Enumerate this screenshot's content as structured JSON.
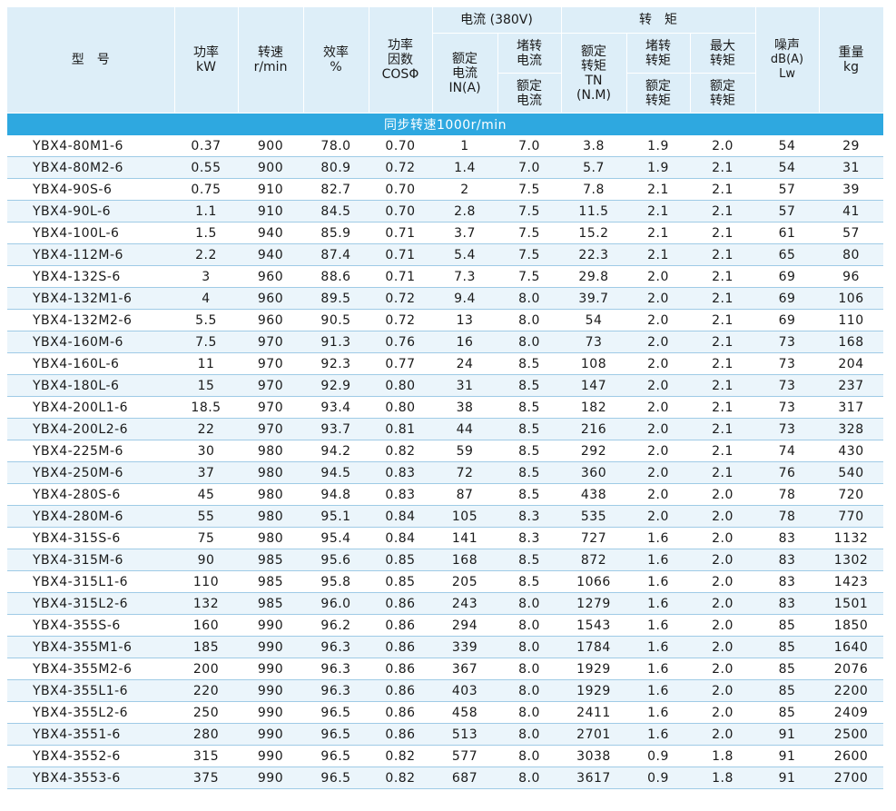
{
  "header": {
    "model": "型　号",
    "power": [
      "功率",
      "kW"
    ],
    "speed": [
      "转速",
      "r/min"
    ],
    "efficiency": [
      "效率",
      "%"
    ],
    "power_factor": [
      "功率",
      "因数",
      "COSΦ"
    ],
    "current_group": "电流 (380V)",
    "rated_current": [
      "额定",
      "电流",
      "IN(A)"
    ],
    "locked_current_top": [
      "堵转",
      "电流"
    ],
    "locked_current_bottom": [
      "额定",
      "电流"
    ],
    "torque_group": "转　矩",
    "rated_torque": [
      "额定",
      "转矩",
      "TN",
      "(N.M)"
    ],
    "locked_torque_top": [
      "堵转",
      "转矩"
    ],
    "locked_torque_bottom": [
      "额定",
      "转矩"
    ],
    "max_torque_top": [
      "最大",
      "转矩"
    ],
    "max_torque_bottom": [
      "额定",
      "转矩"
    ],
    "noise": [
      "噪声",
      "dB(A)",
      "Lw"
    ],
    "weight": [
      "重量",
      "kg"
    ]
  },
  "section_title": "同步转速1000r/min",
  "rows": [
    [
      "YBX4-80M1-6",
      "0.37",
      "900",
      "78.0",
      "0.70",
      "1",
      "7.0",
      "3.8",
      "1.9",
      "2.0",
      "54",
      "29"
    ],
    [
      "YBX4-80M2-6",
      "0.55",
      "900",
      "80.9",
      "0.72",
      "1.4",
      "7.0",
      "5.7",
      "1.9",
      "2.1",
      "54",
      "31"
    ],
    [
      "YBX4-90S-6",
      "0.75",
      "910",
      "82.7",
      "0.70",
      "2",
      "7.5",
      "7.8",
      "2.1",
      "2.1",
      "57",
      "39"
    ],
    [
      "YBX4-90L-6",
      "1.1",
      "910",
      "84.5",
      "0.70",
      "2.8",
      "7.5",
      "11.5",
      "2.1",
      "2.1",
      "57",
      "41"
    ],
    [
      "YBX4-100L-6",
      "1.5",
      "940",
      "85.9",
      "0.71",
      "3.7",
      "7.5",
      "15.2",
      "2.1",
      "2.1",
      "61",
      "57"
    ],
    [
      "YBX4-112M-6",
      "2.2",
      "940",
      "87.4",
      "0.71",
      "5.4",
      "7.5",
      "22.3",
      "2.1",
      "2.1",
      "65",
      "80"
    ],
    [
      "YBX4-132S-6",
      "3",
      "960",
      "88.6",
      "0.71",
      "7.3",
      "7.5",
      "29.8",
      "2.0",
      "2.1",
      "69",
      "96"
    ],
    [
      "YBX4-132M1-6",
      "4",
      "960",
      "89.5",
      "0.72",
      "9.4",
      "8.0",
      "39.7",
      "2.0",
      "2.1",
      "69",
      "106"
    ],
    [
      "YBX4-132M2-6",
      "5.5",
      "960",
      "90.5",
      "0.72",
      "13",
      "8.0",
      "54",
      "2.0",
      "2.1",
      "69",
      "110"
    ],
    [
      "YBX4-160M-6",
      "7.5",
      "970",
      "91.3",
      "0.76",
      "16",
      "8.0",
      "73",
      "2.0",
      "2.1",
      "73",
      "168"
    ],
    [
      "YBX4-160L-6",
      "11",
      "970",
      "92.3",
      "0.77",
      "24",
      "8.5",
      "108",
      "2.0",
      "2.1",
      "73",
      "204"
    ],
    [
      "YBX4-180L-6",
      "15",
      "970",
      "92.9",
      "0.80",
      "31",
      "8.5",
      "147",
      "2.0",
      "2.1",
      "73",
      "237"
    ],
    [
      "YBX4-200L1-6",
      "18.5",
      "970",
      "93.4",
      "0.80",
      "38",
      "8.5",
      "182",
      "2.0",
      "2.1",
      "73",
      "317"
    ],
    [
      "YBX4-200L2-6",
      "22",
      "970",
      "93.7",
      "0.81",
      "44",
      "8.5",
      "216",
      "2.0",
      "2.1",
      "73",
      "328"
    ],
    [
      "YBX4-225M-6",
      "30",
      "980",
      "94.2",
      "0.82",
      "59",
      "8.5",
      "292",
      "2.0",
      "2.1",
      "74",
      "430"
    ],
    [
      "YBX4-250M-6",
      "37",
      "980",
      "94.5",
      "0.83",
      "72",
      "8.5",
      "360",
      "2.0",
      "2.1",
      "76",
      "540"
    ],
    [
      "YBX4-280S-6",
      "45",
      "980",
      "94.8",
      "0.83",
      "87",
      "8.5",
      "438",
      "2.0",
      "2.0",
      "78",
      "720"
    ],
    [
      "YBX4-280M-6",
      "55",
      "980",
      "95.1",
      "0.84",
      "105",
      "8.3",
      "535",
      "2.0",
      "2.0",
      "78",
      "770"
    ],
    [
      "YBX4-315S-6",
      "75",
      "980",
      "95.4",
      "0.84",
      "141",
      "8.3",
      "727",
      "1.6",
      "2.0",
      "83",
      "1132"
    ],
    [
      "YBX4-315M-6",
      "90",
      "985",
      "95.6",
      "0.85",
      "168",
      "8.5",
      "872",
      "1.6",
      "2.0",
      "83",
      "1302"
    ],
    [
      "YBX4-315L1-6",
      "110",
      "985",
      "95.8",
      "0.85",
      "205",
      "8.5",
      "1066",
      "1.6",
      "2.0",
      "83",
      "1423"
    ],
    [
      "YBX4-315L2-6",
      "132",
      "985",
      "96.0",
      "0.86",
      "243",
      "8.0",
      "1279",
      "1.6",
      "2.0",
      "83",
      "1501"
    ],
    [
      "YBX4-355S-6",
      "160",
      "990",
      "96.2",
      "0.86",
      "294",
      "8.0",
      "1543",
      "1.6",
      "2.0",
      "85",
      "1850"
    ],
    [
      "YBX4-355M1-6",
      "185",
      "990",
      "96.3",
      "0.86",
      "339",
      "8.0",
      "1784",
      "1.6",
      "2.0",
      "85",
      "1640"
    ],
    [
      "YBX4-355M2-6",
      "200",
      "990",
      "96.3",
      "0.86",
      "367",
      "8.0",
      "1929",
      "1.6",
      "2.0",
      "85",
      "2076"
    ],
    [
      "YBX4-355L1-6",
      "220",
      "990",
      "96.3",
      "0.86",
      "403",
      "8.0",
      "1929",
      "1.6",
      "2.0",
      "85",
      "2200"
    ],
    [
      "YBX4-355L2-6",
      "250",
      "990",
      "96.5",
      "0.86",
      "458",
      "8.0",
      "2411",
      "1.6",
      "2.0",
      "85",
      "2409"
    ],
    [
      "YBX4-3551-6",
      "280",
      "990",
      "96.5",
      "0.86",
      "513",
      "8.0",
      "2701",
      "1.6",
      "2.0",
      "91",
      "2500"
    ],
    [
      "YBX4-3552-6",
      "315",
      "990",
      "96.5",
      "0.82",
      "577",
      "8.0",
      "3038",
      "0.9",
      "1.8",
      "91",
      "2600"
    ],
    [
      "YBX4-3553-6",
      "375",
      "990",
      "96.5",
      "0.82",
      "687",
      "8.0",
      "3617",
      "0.9",
      "1.8",
      "91",
      "2700"
    ]
  ]
}
